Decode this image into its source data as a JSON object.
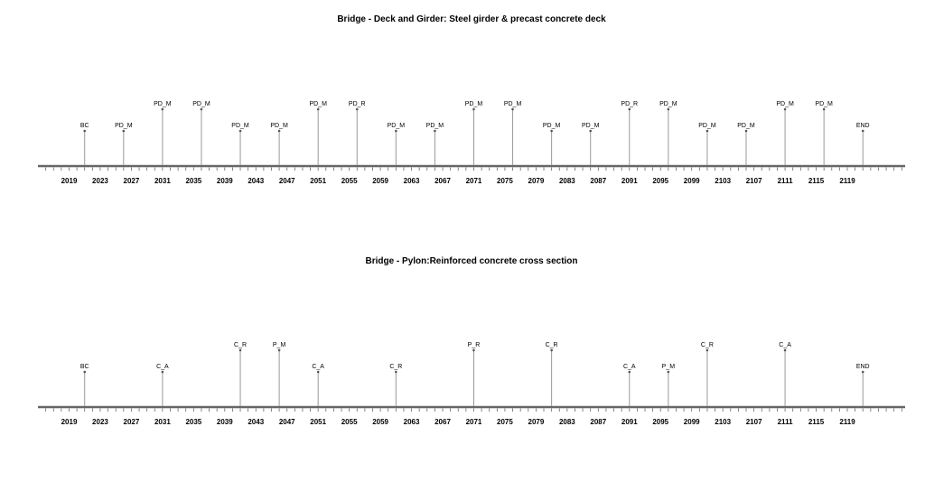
{
  "chart_data": [
    {
      "type": "timeline",
      "title": "Bridge - Deck and Girder: Steel girder & precast concrete deck",
      "xlim": [
        2013,
        2126
      ],
      "tick_labels": [
        2019,
        2023,
        2027,
        2031,
        2035,
        2039,
        2043,
        2047,
        2051,
        2055,
        2059,
        2063,
        2067,
        2071,
        2075,
        2079,
        2083,
        2087,
        2091,
        2095,
        2099,
        2103,
        2107,
        2111,
        2115,
        2119
      ],
      "events": [
        {
          "x": 2021,
          "label": "BC",
          "level": 1
        },
        {
          "x": 2026,
          "label": "PD_M",
          "level": 1
        },
        {
          "x": 2031,
          "label": "PD_M",
          "level": 2
        },
        {
          "x": 2036,
          "label": "PD_M",
          "level": 2
        },
        {
          "x": 2041,
          "label": "PD_M",
          "level": 1
        },
        {
          "x": 2046,
          "label": "PD_M",
          "level": 1
        },
        {
          "x": 2051,
          "label": "PD_M",
          "level": 2
        },
        {
          "x": 2056,
          "label": "PD_R",
          "level": 2
        },
        {
          "x": 2061,
          "label": "PD_M",
          "level": 1
        },
        {
          "x": 2066,
          "label": "PD_M",
          "level": 1
        },
        {
          "x": 2071,
          "label": "PD_M",
          "level": 2
        },
        {
          "x": 2076,
          "label": "PD_M",
          "level": 2
        },
        {
          "x": 2081,
          "label": "PD_M",
          "level": 1
        },
        {
          "x": 2086,
          "label": "PD_M",
          "level": 1
        },
        {
          "x": 2091,
          "label": "PD_R",
          "level": 2
        },
        {
          "x": 2096,
          "label": "PD_M",
          "level": 2
        },
        {
          "x": 2101,
          "label": "PD_M",
          "level": 1
        },
        {
          "x": 2106,
          "label": "PD_M",
          "level": 1
        },
        {
          "x": 2111,
          "label": "PD_M",
          "level": 2
        },
        {
          "x": 2116,
          "label": "PD_M",
          "level": 2
        },
        {
          "x": 2121,
          "label": "END",
          "level": 1
        }
      ]
    },
    {
      "type": "timeline",
      "title": "Bridge - Pylon:Reinforced concrete cross section",
      "xlim": [
        2013,
        2126
      ],
      "tick_labels": [
        2019,
        2023,
        2027,
        2031,
        2035,
        2039,
        2043,
        2047,
        2051,
        2055,
        2059,
        2063,
        2067,
        2071,
        2075,
        2079,
        2083,
        2087,
        2091,
        2095,
        2099,
        2103,
        2107,
        2111,
        2115,
        2119
      ],
      "events": [
        {
          "x": 2021,
          "label": "BC",
          "level": 1
        },
        {
          "x": 2031,
          "label": "C_A",
          "level": 1
        },
        {
          "x": 2041,
          "label": "C_R",
          "level": 2
        },
        {
          "x": 2046,
          "label": "P_M",
          "level": 2
        },
        {
          "x": 2051,
          "label": "C_A",
          "level": 1
        },
        {
          "x": 2061,
          "label": "C_R",
          "level": 1
        },
        {
          "x": 2071,
          "label": "P_R",
          "level": 2
        },
        {
          "x": 2081,
          "label": "C_R",
          "level": 2
        },
        {
          "x": 2091,
          "label": "C_A",
          "level": 1
        },
        {
          "x": 2096,
          "label": "P_M",
          "level": 1
        },
        {
          "x": 2101,
          "label": "C_R",
          "level": 2
        },
        {
          "x": 2111,
          "label": "C_A",
          "level": 2
        },
        {
          "x": 2121,
          "label": "END",
          "level": 1
        }
      ]
    }
  ],
  "colors": {
    "axis": "#666666",
    "stem": "#999999",
    "text": "#000000"
  }
}
